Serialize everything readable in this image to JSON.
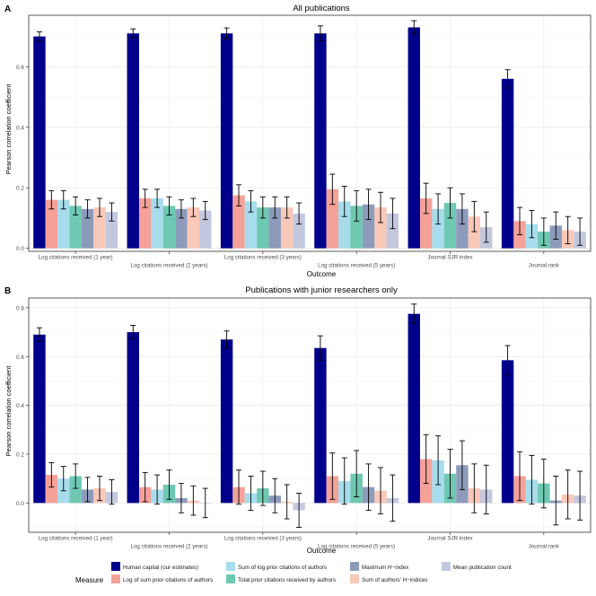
{
  "colors": {
    "human": "#00008b",
    "log_sum": "#f4a199",
    "sum_log": "#a7dcec",
    "total": "#6fc8b2",
    "max_h": "#8d9bbb",
    "sum_h": "#f8c8b8",
    "mean_pub": "#c4c8df"
  },
  "legend": {
    "title": "Measure",
    "items": [
      {
        "key": "human",
        "label": "Human capital (our estimates)"
      },
      {
        "key": "log_sum",
        "label": "Log of sum prior citations of authors"
      },
      {
        "key": "sum_log",
        "label": "Sum of log prior citations of authors"
      },
      {
        "key": "total",
        "label": "Total prior citations received by authors"
      },
      {
        "key": "max_h",
        "label": "Maximum H−index"
      },
      {
        "key": "sum_h",
        "label": "Sum of authors' H−indices"
      },
      {
        "key": "mean_pub",
        "label": "Mean publication count"
      }
    ]
  },
  "chart_data": [
    {
      "type": "bar",
      "panel_label": "A",
      "title": "All publications",
      "xlabel": "Outcome",
      "ylabel": "Pearson correlation coefficient",
      "ylim": [
        -0.01,
        0.77
      ],
      "yticks": [
        0,
        0.2,
        0.4,
        0.6
      ],
      "ytick_labels": [
        "0.0",
        "0.2",
        "0.4",
        "0.6"
      ],
      "categories": [
        "Log citations received (1 year)",
        "Log citations received (2 years)",
        "Log citations received (3 years)",
        "Log citations received (5 years)",
        "Journal SJR index",
        "Journal rank"
      ],
      "series": [
        {
          "name": "Human capital (our estimates)",
          "key": "human",
          "values": [
            0.7,
            0.71,
            0.71,
            0.71,
            0.73,
            0.56
          ],
          "err": [
            0.015,
            0.015,
            0.018,
            0.025,
            0.022,
            0.03
          ]
        },
        {
          "name": "Log of sum prior citations of authors",
          "key": "log_sum",
          "values": [
            0.16,
            0.165,
            0.175,
            0.195,
            0.165,
            0.09
          ],
          "err": [
            0.03,
            0.03,
            0.035,
            0.05,
            0.05,
            0.045
          ]
        },
        {
          "name": "Sum of log prior citations of authors",
          "key": "sum_log",
          "values": [
            0.16,
            0.165,
            0.155,
            0.155,
            0.13,
            0.08
          ],
          "err": [
            0.03,
            0.03,
            0.035,
            0.05,
            0.05,
            0.045
          ]
        },
        {
          "name": "Total prior citations received by authors",
          "key": "total",
          "values": [
            0.14,
            0.14,
            0.135,
            0.14,
            0.15,
            0.055
          ],
          "err": [
            0.03,
            0.03,
            0.035,
            0.05,
            0.05,
            0.045
          ]
        },
        {
          "name": "Maximum H−index",
          "key": "max_h",
          "values": [
            0.13,
            0.13,
            0.135,
            0.145,
            0.13,
            0.075
          ],
          "err": [
            0.03,
            0.03,
            0.035,
            0.05,
            0.05,
            0.045
          ]
        },
        {
          "name": "Sum of authors' H−indices",
          "key": "sum_h",
          "values": [
            0.135,
            0.135,
            0.135,
            0.135,
            0.105,
            0.06
          ],
          "err": [
            0.03,
            0.03,
            0.035,
            0.05,
            0.05,
            0.045
          ]
        },
        {
          "name": "Mean publication count",
          "key": "mean_pub",
          "values": [
            0.12,
            0.125,
            0.115,
            0.115,
            0.07,
            0.055
          ],
          "err": [
            0.03,
            0.03,
            0.035,
            0.05,
            0.05,
            0.045
          ]
        }
      ]
    },
    {
      "type": "bar",
      "panel_label": "B",
      "title": "Publications with junior researchers only",
      "xlabel": "Outcome",
      "ylabel": "Pearson correlation coefficient",
      "ylim": [
        -0.12,
        0.84
      ],
      "yticks": [
        0,
        0.2,
        0.4,
        0.6,
        0.8
      ],
      "ytick_labels": [
        "0.0",
        "0.2",
        "0.4",
        "0.6",
        "0.8"
      ],
      "categories": [
        "Log citations received (1 year)",
        "Log citations received (2 years)",
        "Log citations received (3 years)",
        "Log citations received (5 years)",
        "Journal SJR index",
        "Journal rank"
      ],
      "series": [
        {
          "name": "Human capital (our estimates)",
          "key": "human",
          "values": [
            0.69,
            0.7,
            0.67,
            0.635,
            0.775,
            0.585
          ],
          "err": [
            0.028,
            0.028,
            0.035,
            0.05,
            0.04,
            0.06
          ]
        },
        {
          "name": "Log of sum prior citations of authors",
          "key": "log_sum",
          "values": [
            0.115,
            0.065,
            0.065,
            0.11,
            0.18,
            0.11
          ],
          "err": [
            0.05,
            0.06,
            0.07,
            0.095,
            0.1,
            0.1
          ]
        },
        {
          "name": "Sum of log prior citations of authors",
          "key": "sum_log",
          "values": [
            0.1,
            0.055,
            0.04,
            0.09,
            0.175,
            0.095
          ],
          "err": [
            0.05,
            0.06,
            0.07,
            0.095,
            0.1,
            0.1
          ]
        },
        {
          "name": "Total prior citations received by authors",
          "key": "total",
          "values": [
            0.11,
            0.075,
            0.06,
            0.12,
            0.12,
            0.08
          ],
          "err": [
            0.05,
            0.06,
            0.07,
            0.095,
            0.1,
            0.1
          ]
        },
        {
          "name": "Maximum H−index",
          "key": "max_h",
          "values": [
            0.055,
            0.02,
            0.03,
            0.065,
            0.155,
            0.01
          ],
          "err": [
            0.05,
            0.06,
            0.07,
            0.095,
            0.1,
            0.1
          ]
        },
        {
          "name": "Sum of authors' H−indices",
          "key": "sum_h",
          "values": [
            0.06,
            0.01,
            0.005,
            0.05,
            0.06,
            0.035
          ],
          "err": [
            0.05,
            0.06,
            0.07,
            0.095,
            0.1,
            0.1
          ]
        },
        {
          "name": "Mean publication count",
          "key": "mean_pub",
          "values": [
            0.045,
            0.0,
            -0.03,
            0.02,
            0.055,
            0.03
          ],
          "err": [
            0.05,
            0.06,
            0.07,
            0.095,
            0.1,
            0.1
          ]
        }
      ]
    }
  ]
}
